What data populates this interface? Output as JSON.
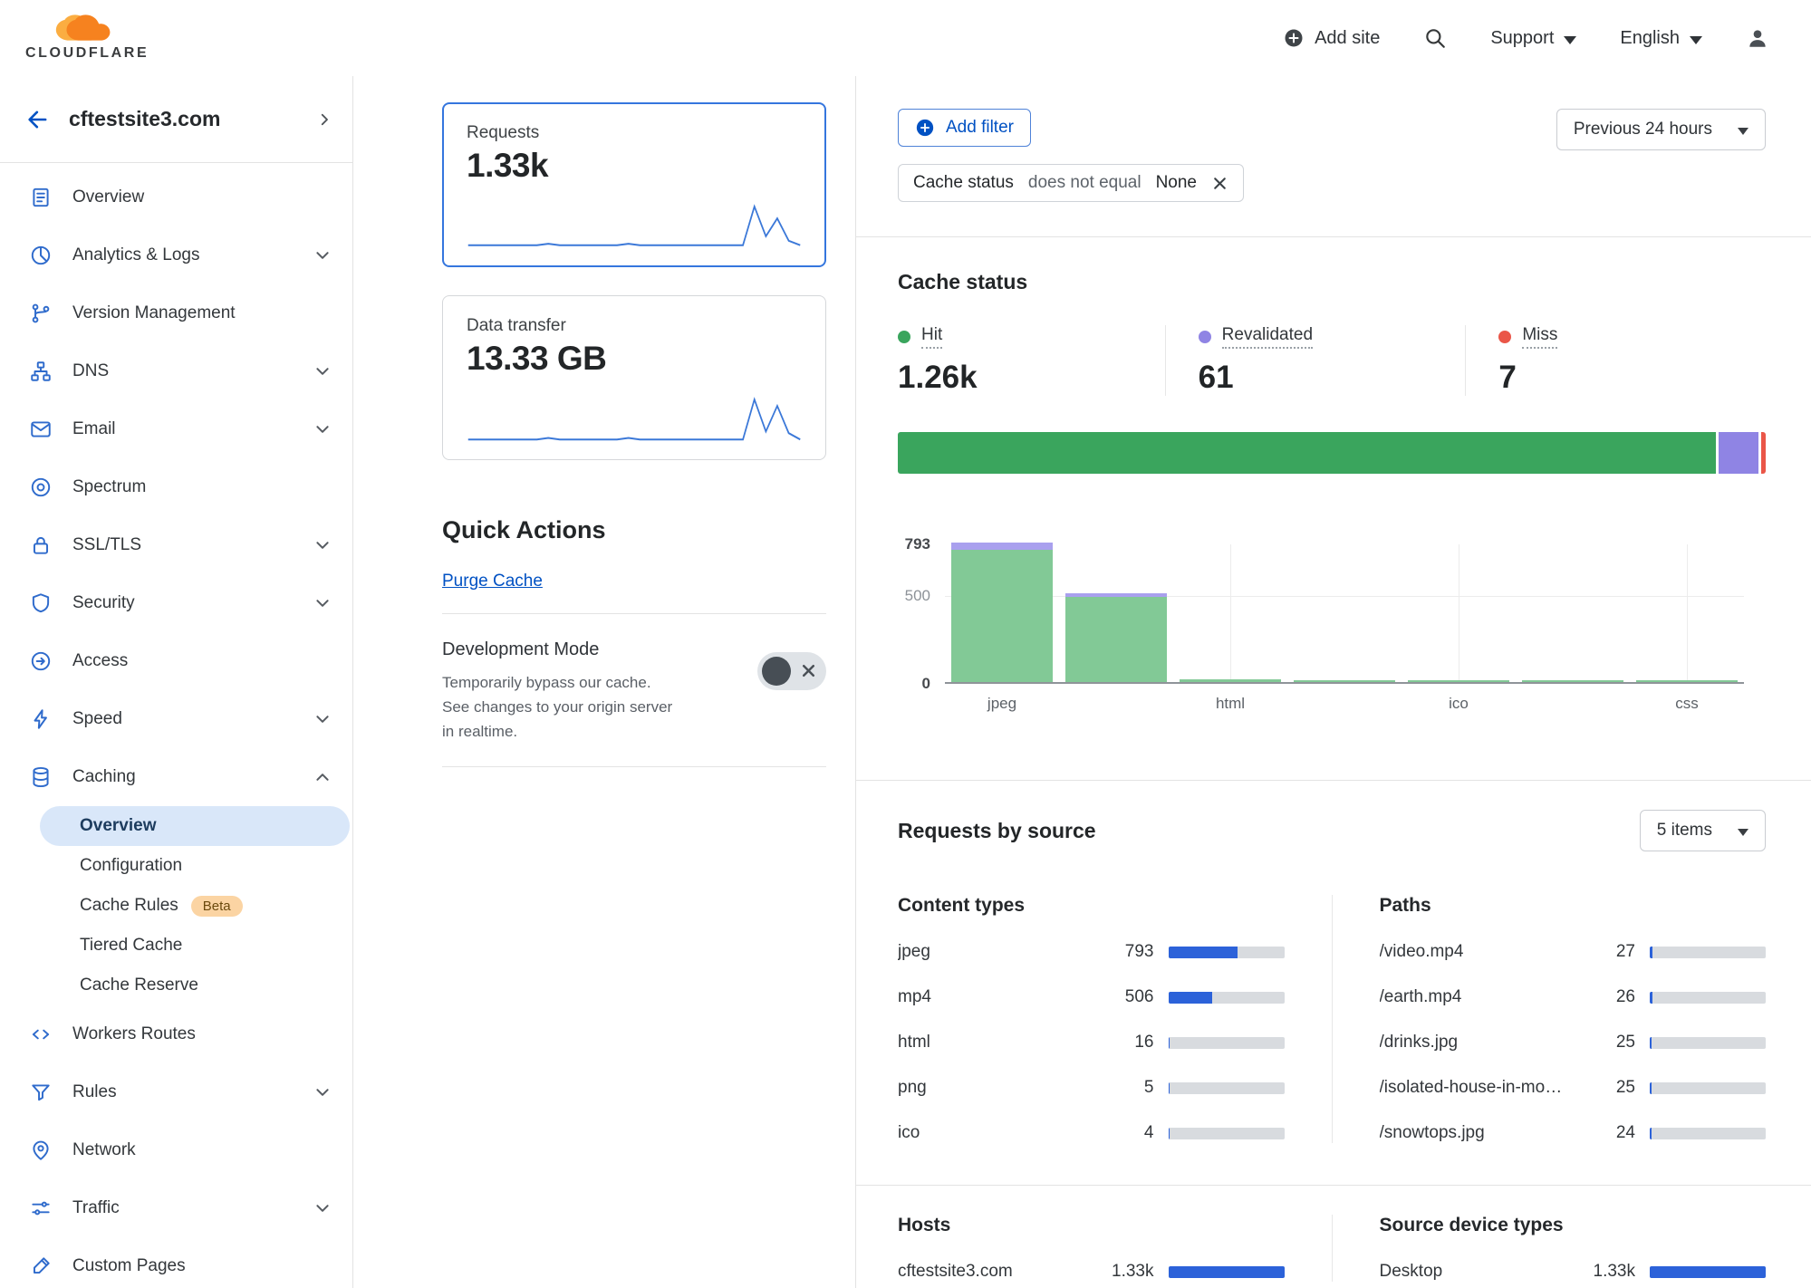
{
  "colors": {
    "accent_blue": "#0051c3",
    "fill_blue": "#2c62d9",
    "hit_green": "#3aa55d",
    "revalidated_purple": "#8f84e4",
    "miss_red": "#ea5648",
    "bar_green_light": "#82c996",
    "bar_purple_light": "#a9a0ee",
    "beta_badge_bg": "#fbd4a3",
    "active_item_bg": "#d9e7f9"
  },
  "header": {
    "brand": "CLOUDFLARE",
    "add_site": "Add site",
    "support": "Support",
    "language": "English"
  },
  "sidebar": {
    "site": "cftestsite3.com",
    "items": [
      {
        "label": "Overview",
        "icon": "overview-icon"
      },
      {
        "label": "Analytics & Logs",
        "icon": "analytics-icon",
        "expandable": true
      },
      {
        "label": "Version Management",
        "icon": "version-management-icon"
      },
      {
        "label": "DNS",
        "icon": "dns-icon",
        "expandable": true
      },
      {
        "label": "Email",
        "icon": "email-icon",
        "expandable": true
      },
      {
        "label": "Spectrum",
        "icon": "spectrum-icon"
      },
      {
        "label": "SSL/TLS",
        "icon": "ssl-tls-icon",
        "expandable": true
      },
      {
        "label": "Security",
        "icon": "security-icon",
        "expandable": true
      },
      {
        "label": "Access",
        "icon": "access-icon"
      },
      {
        "label": "Speed",
        "icon": "speed-icon",
        "expandable": true
      },
      {
        "label": "Caching",
        "icon": "caching-icon",
        "expandable": true,
        "expanded": true,
        "children": [
          {
            "label": "Overview",
            "active": true
          },
          {
            "label": "Configuration"
          },
          {
            "label": "Cache Rules",
            "badge": "Beta"
          },
          {
            "label": "Tiered Cache"
          },
          {
            "label": "Cache Reserve"
          }
        ]
      },
      {
        "label": "Workers Routes",
        "icon": "workers-routes-icon"
      },
      {
        "label": "Rules",
        "icon": "rules-icon",
        "expandable": true
      },
      {
        "label": "Network",
        "icon": "network-icon"
      },
      {
        "label": "Traffic",
        "icon": "traffic-icon",
        "expandable": true
      },
      {
        "label": "Custom Pages",
        "icon": "custom-pages-icon"
      }
    ]
  },
  "summary_cards": [
    {
      "label": "Requests",
      "value": "1.33k",
      "selected": true
    },
    {
      "label": "Data transfer",
      "value": "13.33 GB",
      "selected": false
    }
  ],
  "quick_actions": {
    "title": "Quick Actions",
    "purge_cache_label": "Purge Cache",
    "development_mode": {
      "title": "Development Mode",
      "description": "Temporarily bypass our cache. See changes to your origin server in realtime.",
      "state": "off"
    }
  },
  "filter_bar": {
    "add_filter_label": "Add filter",
    "time_range": "Previous 24 hours",
    "chip": {
      "field": "Cache status",
      "operator": "does not equal",
      "value": "None"
    }
  },
  "cache_status": {
    "title": "Cache status",
    "legend": [
      {
        "label": "Hit",
        "value": "1.26k",
        "color": "#3aa55d"
      },
      {
        "label": "Revalidated",
        "value": "61",
        "color": "#8f84e4"
      },
      {
        "label": "Miss",
        "value": "7",
        "color": "#ea5648"
      }
    ]
  },
  "chart_data": [
    {
      "type": "bar",
      "title": "Cache status by content type",
      "stacked": true,
      "ylim": [
        0,
        793
      ],
      "yticks": [
        793,
        500,
        0
      ],
      "categories": [
        "jpeg",
        "mp4",
        "html",
        "png",
        "ico",
        "",
        "css"
      ],
      "xtick_labels": [
        "jpeg",
        "",
        "html",
        "",
        "ico",
        "",
        "css"
      ],
      "series": [
        {
          "name": "Hit",
          "values": [
            753,
            485,
            16,
            5,
            4,
            1,
            2
          ]
        },
        {
          "name": "Revalidated",
          "values": [
            40,
            21,
            0,
            0,
            0,
            0,
            0
          ]
        }
      ],
      "distribution": [
        {
          "name": "Hit",
          "value": 1260
        },
        {
          "name": "Revalidated",
          "value": 61
        },
        {
          "name": "Miss",
          "value": 7
        }
      ],
      "grid": "light"
    },
    {
      "type": "line",
      "title": "Requests sparkline (24h)",
      "values": [
        2,
        2,
        2,
        2,
        2,
        2,
        2,
        3,
        2,
        2,
        2,
        2,
        2,
        2,
        3,
        2,
        2,
        2,
        2,
        2,
        2,
        2,
        2,
        2,
        2,
        28,
        8,
        20,
        5,
        2
      ]
    },
    {
      "type": "line",
      "title": "Data transfer sparkline (24h)",
      "values": [
        1,
        1,
        1,
        1,
        1,
        1,
        1,
        2,
        1,
        1,
        1,
        1,
        1,
        1,
        2,
        1,
        1,
        1,
        1,
        1,
        1,
        1,
        1,
        1,
        1,
        26,
        6,
        22,
        5,
        1
      ]
    }
  ],
  "requests_by_source": {
    "title": "Requests by source",
    "items_dropdown": "5 items",
    "total_requests": 1330,
    "content_types": {
      "title": "Content types",
      "rows": [
        {
          "label": "jpeg",
          "value": "793",
          "num": 793
        },
        {
          "label": "mp4",
          "value": "506",
          "num": 506
        },
        {
          "label": "html",
          "value": "16",
          "num": 16
        },
        {
          "label": "png",
          "value": "5",
          "num": 5
        },
        {
          "label": "ico",
          "value": "4",
          "num": 4
        }
      ]
    },
    "paths": {
      "title": "Paths",
      "rows": [
        {
          "label": "/video.mp4",
          "value": "27",
          "num": 27
        },
        {
          "label": "/earth.mp4",
          "value": "26",
          "num": 26
        },
        {
          "label": "/drinks.jpg",
          "value": "25",
          "num": 25
        },
        {
          "label": "/isolated-house-in-mo…",
          "value": "25",
          "num": 25
        },
        {
          "label": "/snowtops.jpg",
          "value": "24",
          "num": 24
        }
      ]
    },
    "hosts": {
      "title": "Hosts",
      "rows": [
        {
          "label": "cftestsite3.com",
          "value": "1.33k",
          "num": 1330
        }
      ]
    },
    "device_types": {
      "title": "Source device types",
      "rows": [
        {
          "label": "Desktop",
          "value": "1.33k",
          "num": 1330
        }
      ]
    }
  }
}
